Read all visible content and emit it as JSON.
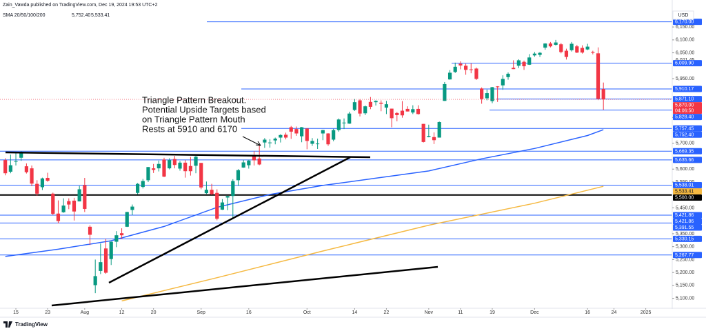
{
  "header": {
    "publisher": "Zain_Vawda published on TradingView.com, Dec 19, 2024 19:53 UTC+2"
  },
  "chart_data": {
    "type": "candlestick",
    "currency": "USD",
    "up_color": "#089981",
    "down_color": "#f23645",
    "ohlc": [
      [
        5635,
        5642,
        5576,
        5584
      ],
      [
        5590,
        5656,
        5584,
        5615
      ],
      [
        5630,
        5666,
        5614,
        5631
      ],
      [
        5644,
        5669,
        5632,
        5667
      ],
      [
        5611,
        5622,
        5583,
        5588
      ],
      [
        5603,
        5614,
        5534,
        5544
      ],
      [
        5543,
        5557,
        5497,
        5505
      ],
      [
        5530,
        5567,
        5519,
        5564
      ],
      [
        5566,
        5586,
        5551,
        5555
      ],
      [
        5505,
        5509,
        5422,
        5427
      ],
      [
        5428,
        5479,
        5390,
        5399
      ],
      [
        5433,
        5487,
        5431,
        5459
      ],
      [
        5476,
        5487,
        5445,
        5463
      ],
      [
        5478,
        5489,
        5401,
        5436
      ],
      [
        5475,
        5535,
        5475,
        5522
      ],
      [
        5538,
        5566,
        5434,
        5446
      ],
      [
        5377,
        5383,
        5306,
        5346
      ],
      [
        5151,
        5250,
        5120,
        5186
      ],
      [
        5206,
        5312,
        5194,
        5240
      ],
      [
        5293,
        5330,
        5195,
        5199
      ],
      [
        5252,
        5320,
        5229,
        5319
      ],
      [
        5319,
        5360,
        5298,
        5344
      ],
      [
        5352,
        5371,
        5330,
        5344
      ],
      [
        5377,
        5435,
        5376,
        5434
      ],
      [
        5442,
        5463,
        5422,
        5455
      ],
      [
        5508,
        5546,
        5502,
        5543
      ],
      [
        5531,
        5562,
        5525,
        5554
      ],
      [
        5557,
        5608,
        5550,
        5608
      ],
      [
        5603,
        5620,
        5585,
        5597
      ],
      [
        5603,
        5633,
        5591,
        5620
      ],
      [
        5637,
        5644,
        5569,
        5571
      ],
      [
        5603,
        5642,
        5599,
        5635
      ],
      [
        5639,
        5651,
        5603,
        5616
      ],
      [
        5602,
        5631,
        5594,
        5625
      ],
      [
        5625,
        5635,
        5567,
        5592
      ],
      [
        5612,
        5647,
        5575,
        5592
      ],
      [
        5613,
        5651,
        5584,
        5648
      ],
      [
        5624,
        5624,
        5522,
        5529
      ],
      [
        5507,
        5552,
        5504,
        5520
      ],
      [
        5520,
        5543,
        5500,
        5503
      ],
      [
        5508,
        5522,
        5402,
        5408
      ],
      [
        5443,
        5484,
        5442,
        5471
      ],
      [
        5490,
        5497,
        5441,
        5496
      ],
      [
        5496,
        5561,
        5406,
        5554
      ],
      [
        5557,
        5600,
        5535,
        5596
      ],
      [
        5606,
        5636,
        5605,
        5626
      ],
      [
        5615,
        5636,
        5602,
        5633
      ],
      [
        5655,
        5670,
        5614,
        5634
      ],
      [
        5641,
        5690,
        5615,
        5618
      ],
      [
        5703,
        5720,
        5682,
        5714
      ],
      [
        5703,
        5716,
        5683,
        5703
      ],
      [
        5711,
        5722,
        5696,
        5718
      ],
      [
        5722,
        5735,
        5703,
        5732
      ],
      [
        5733,
        5741,
        5715,
        5722
      ],
      [
        5762,
        5767,
        5717,
        5745
      ],
      [
        5755,
        5765,
        5729,
        5738
      ],
      [
        5727,
        5763,
        5704,
        5762
      ],
      [
        5757,
        5758,
        5677,
        5709
      ],
      [
        5698,
        5720,
        5690,
        5709
      ],
      [
        5699,
        5718,
        5678,
        5699
      ],
      [
        5738,
        5752,
        5712,
        5751
      ],
      [
        5738,
        5739,
        5690,
        5696
      ],
      [
        5714,
        5756,
        5708,
        5751
      ],
      [
        5751,
        5796,
        5745,
        5792
      ],
      [
        5778,
        5796,
        5755,
        5780
      ],
      [
        5776,
        5822,
        5775,
        5815
      ],
      [
        5829,
        5871,
        5825,
        5859
      ],
      [
        5866,
        5871,
        5804,
        5815
      ],
      [
        5816,
        5846,
        5809,
        5843
      ],
      [
        5860,
        5879,
        5832,
        5841
      ],
      [
        5859,
        5866,
        5846,
        5864
      ],
      [
        5857,
        5866,
        5824,
        5853
      ],
      [
        5838,
        5864,
        5813,
        5851
      ],
      [
        5834,
        5834,
        5762,
        5797
      ],
      [
        5817,
        5821,
        5785,
        5809
      ],
      [
        5826,
        5863,
        5799,
        5808
      ],
      [
        5833,
        5843,
        5823,
        5823
      ],
      [
        5819,
        5847,
        5813,
        5832
      ],
      [
        5833,
        5847,
        5811,
        5813
      ],
      [
        5775,
        5775,
        5703,
        5705
      ],
      [
        5724,
        5772,
        5723,
        5728
      ],
      [
        5724,
        5742,
        5697,
        5712
      ],
      [
        5722,
        5784,
        5722,
        5782
      ],
      [
        5864,
        5937,
        5864,
        5929
      ],
      [
        5947,
        5983,
        5946,
        5973
      ],
      [
        5976,
        6012,
        5972,
        5996
      ],
      [
        6008,
        6017,
        5986,
        6001
      ],
      [
        6000,
        6008,
        5965,
        5984
      ],
      [
        5986,
        6009,
        5971,
        5985
      ],
      [
        5989,
        5993,
        5945,
        5949
      ],
      [
        5912,
        5916,
        5853,
        5871
      ],
      [
        5874,
        5908,
        5866,
        5894
      ],
      [
        5863,
        5918,
        5855,
        5917
      ],
      [
        5920,
        5921,
        5860,
        5917
      ],
      [
        5924,
        5963,
        5907,
        5949
      ],
      [
        5956,
        5974,
        5946,
        5969
      ],
      [
        5992,
        6021,
        5987,
        5987
      ],
      [
        6000,
        6025,
        5991,
        6021
      ],
      [
        6015,
        6020,
        5984,
        5998
      ],
      [
        6004,
        6045,
        6003,
        6032
      ],
      [
        6040,
        6053,
        6035,
        6047
      ],
      [
        6042,
        6053,
        6034,
        6050
      ],
      [
        6070,
        6087,
        6062,
        6086
      ],
      [
        6086,
        6092,
        6071,
        6075
      ],
      [
        6081,
        6100,
        6078,
        6090
      ],
      [
        6083,
        6088,
        6048,
        6053
      ],
      [
        6058,
        6066,
        6024,
        6034
      ],
      [
        6060,
        6092,
        6055,
        6085
      ],
      [
        6075,
        6081,
        6049,
        6051
      ],
      [
        6069,
        6079,
        6047,
        6051
      ],
      [
        6063,
        6085,
        6060,
        6074
      ],
      [
        6053,
        6058,
        6044,
        6050
      ],
      [
        6048,
        6071,
        5867,
        5872
      ],
      [
        5910,
        5935,
        5830,
        5870
      ]
    ],
    "xlim": [
      -1,
      126
    ],
    "xticks": [
      {
        "value": 2,
        "label": "15"
      },
      {
        "value": 8,
        "label": "23"
      },
      {
        "value": 15,
        "label": "Aug"
      },
      {
        "value": 22,
        "label": "12"
      },
      {
        "value": 28,
        "label": "20"
      },
      {
        "value": 37,
        "label": "Sep"
      },
      {
        "value": 46,
        "label": "16"
      },
      {
        "value": 57,
        "label": "Oct"
      },
      {
        "value": 66,
        "label": "14"
      },
      {
        "value": 72,
        "label": "22"
      },
      {
        "value": 80,
        "label": "Nov"
      },
      {
        "value": 86,
        "label": "11"
      },
      {
        "value": 92,
        "label": "19"
      },
      {
        "value": 100,
        "label": "Dec"
      },
      {
        "value": 110,
        "label": "16"
      },
      {
        "value": 115,
        "label": "24"
      },
      {
        "value": 121,
        "label": "2025"
      }
    ],
    "ylim": [
      5059,
      6217
    ],
    "yticks": [
      {
        "value": 6150,
        "label": "6,150.00"
      },
      {
        "value": 6100,
        "label": "6,100.00"
      },
      {
        "value": 6050,
        "label": "6,050.00"
      },
      {
        "value": 5950,
        "label": "5,950.00"
      },
      {
        "value": 5800,
        "label": "5,800.00"
      },
      {
        "value": 5700,
        "label": "5,700.00"
      },
      {
        "value": 5600,
        "label": "5,600.00"
      },
      {
        "value": 5550,
        "label": "5,550.00"
      },
      {
        "value": 5450,
        "label": "5,450.00"
      },
      {
        "value": 5350,
        "label": "5,350.00"
      },
      {
        "value": 5300,
        "label": "5,300.00"
      },
      {
        "value": 5250,
        "label": "5,250.00"
      },
      {
        "value": 5200,
        "label": "5,200.00"
      },
      {
        "value": 5150,
        "label": "5,150.00"
      },
      {
        "value": 5100,
        "label": "5,100.00"
      }
    ],
    "indicator": "SMA 20/50/100/200",
    "series": [
      {
        "color": "#2962ff",
        "x": [
          0,
          10,
          20,
          30,
          40,
          50,
          60,
          70,
          80,
          90,
          100,
          110,
          113
        ],
        "values": [
          5262,
          5290,
          5323,
          5378,
          5452,
          5502,
          5537,
          5565,
          5593,
          5640,
          5680,
          5730,
          5752.4
        ],
        "last_label": "5,752.40"
      },
      {
        "color": "#f5b942",
        "x": [
          22,
          40,
          60,
          80,
          100,
          113
        ],
        "values": [
          5090,
          5180,
          5283,
          5383,
          5468,
          5533.41
        ],
        "last_label": "5,533.41"
      }
    ],
    "levels": [
      {
        "value": 6170,
        "label": "6,170.00",
        "color": "#2962ff"
      },
      {
        "value": 6009.9,
        "label": "6,009.90",
        "color": "#2962ff"
      },
      {
        "value": 5910.17,
        "label": "5,910.17",
        "color": "#2962ff"
      },
      {
        "value": 5871.1,
        "label": "5,871.10",
        "color": "#2962ff"
      },
      {
        "value": 5828.4,
        "label": "5,828.40",
        "color": "#2962ff"
      },
      {
        "value": 5757.45,
        "label": "5,757.45",
        "color": "#2962ff"
      },
      {
        "value": 5669.35,
        "label": "5,669.35",
        "color": "#2962ff"
      },
      {
        "value": 5635.66,
        "label": "5,635.66",
        "color": "#2962ff"
      },
      {
        "value": 5538.01,
        "label": "5,538.01",
        "color": "#2962ff"
      },
      {
        "value": 5500,
        "label": "5,500.00",
        "color": "#000000"
      },
      {
        "value": 5421.86,
        "label": "5,421.86",
        "color": "#2962ff"
      },
      {
        "value": 5421.86,
        "label": "5,421.86",
        "color": "#2962ff"
      },
      {
        "value": 5391.55,
        "label": "5,391.55",
        "color": "#2962ff"
      },
      {
        "value": 5330.15,
        "label": "5,330.15",
        "color": "#2962ff"
      },
      {
        "value": 5267.77,
        "label": "5,267.77",
        "color": "#2962ff"
      }
    ],
    "last_price": {
      "value": 5870,
      "label": "5,870.00",
      "countdown": "04:06:50",
      "color": "#f23645"
    },
    "marker": {
      "value": 6021.45,
      "label": "6,021.45"
    },
    "annotation": [
      "Triangle Pattern Breakout.",
      "Potential Upside Targets based",
      "on Triangle Pattern Mouth",
      "Rests at 5910 and 6170"
    ]
  },
  "footer": {
    "brand": "TradingView"
  }
}
